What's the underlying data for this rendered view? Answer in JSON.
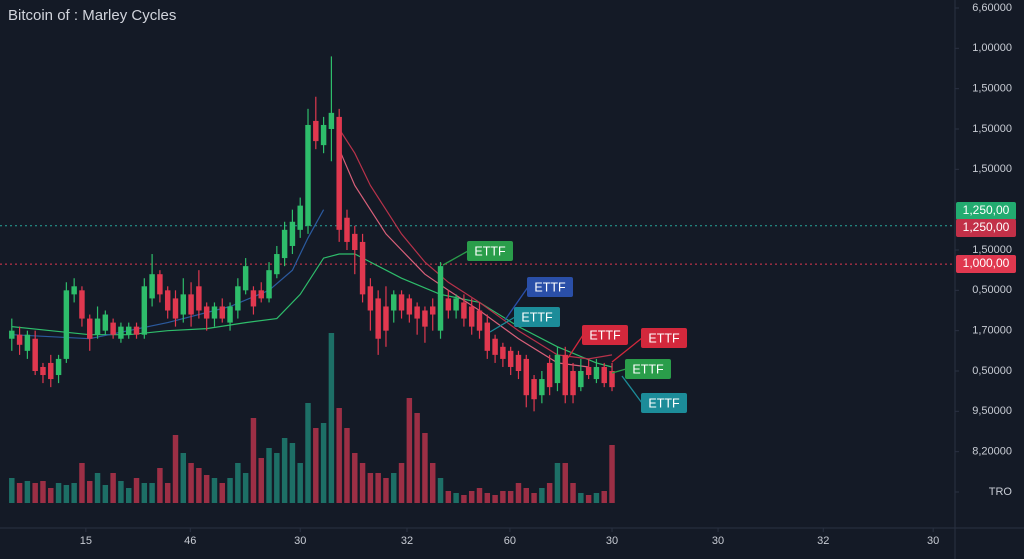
{
  "chart_data": {
    "type": "candlestick",
    "title": "Bitcoin of : Marley Cycles",
    "x": [
      0,
      1,
      2,
      3,
      4,
      5,
      6,
      7,
      8,
      9,
      10,
      11,
      12,
      13,
      14,
      15,
      16,
      17,
      18,
      19,
      20,
      21,
      22,
      23,
      24,
      25,
      26,
      27,
      28,
      29,
      30,
      31,
      32,
      33,
      34,
      35,
      36,
      37,
      38,
      39,
      40,
      41,
      42,
      43,
      44,
      45,
      46,
      47,
      48,
      49,
      50,
      51,
      52,
      53,
      54,
      55,
      56,
      57,
      58,
      59,
      60,
      61,
      62,
      63,
      64,
      65,
      66,
      67,
      68,
      69,
      70,
      71,
      72,
      73,
      74,
      75,
      76,
      77
    ],
    "open": [
      3.8,
      3.9,
      3.5,
      3.8,
      3.1,
      3.2,
      2.9,
      3.3,
      4.9,
      5.0,
      4.3,
      3.9,
      4.0,
      4.2,
      3.8,
      3.9,
      4.1,
      3.9,
      4.8,
      5.4,
      5.0,
      4.8,
      4.4,
      4.9,
      5.1,
      4.6,
      4.3,
      4.6,
      4.2,
      4.5,
      5.0,
      5.0,
      5.0,
      4.8,
      5.4,
      5.8,
      6.1,
      6.5,
      6.6,
      9.2,
      8.6,
      9.0,
      9.3,
      6.8,
      6.4,
      6.2,
      5.1,
      4.8,
      4.6,
      4.5,
      4.9,
      4.8,
      4.6,
      4.5,
      4.6,
      4.0,
      4.8,
      4.5,
      4.7,
      4.6,
      4.5,
      4.2,
      3.8,
      3.6,
      3.5,
      3.4,
      3.3,
      2.8,
      2.4,
      3.2,
      2.7,
      3.4,
      3.0,
      2.6,
      3.1,
      2.8,
      3.1,
      3.0
    ],
    "high": [
      4.3,
      4.1,
      4.0,
      4.0,
      3.2,
      3.4,
      3.4,
      5.2,
      5.3,
      5.1,
      4.4,
      4.6,
      4.5,
      4.3,
      4.2,
      4.2,
      4.2,
      5.3,
      5.9,
      5.5,
      5.1,
      5.0,
      5.3,
      5.2,
      5.5,
      4.7,
      4.7,
      4.8,
      4.7,
      5.3,
      5.8,
      5.1,
      5.2,
      5.7,
      6.1,
      6.7,
      7.0,
      7.3,
      9.5,
      9.8,
      9.3,
      10.8,
      9.5,
      7.0,
      6.6,
      6.4,
      5.3,
      5.0,
      5.1,
      5.0,
      5.0,
      4.9,
      4.7,
      4.6,
      4.8,
      5.7,
      5.0,
      4.9,
      4.9,
      4.8,
      4.7,
      4.4,
      3.9,
      3.7,
      3.6,
      3.5,
      3.4,
      2.9,
      3.0,
      3.4,
      3.6,
      3.6,
      3.2,
      3.3,
      3.3,
      3.3,
      3.2,
      3.2
    ],
    "low": [
      3.5,
      3.4,
      3.3,
      2.9,
      2.7,
      2.6,
      2.7,
      3.2,
      4.7,
      4.1,
      3.5,
      3.8,
      3.9,
      3.8,
      3.7,
      3.8,
      3.8,
      3.8,
      4.6,
      4.7,
      4.3,
      4.1,
      4.2,
      4.1,
      4.3,
      4.0,
      4.1,
      4.2,
      4.0,
      4.3,
      4.9,
      4.4,
      4.7,
      4.7,
      5.3,
      5.6,
      5.9,
      6.3,
      6.4,
      8.5,
      8.4,
      8.2,
      6.2,
      6.0,
      5.4,
      4.7,
      4.0,
      3.4,
      3.6,
      4.2,
      4.3,
      4.2,
      3.9,
      3.7,
      4.0,
      3.8,
      4.3,
      4.3,
      4.1,
      3.9,
      3.8,
      3.3,
      3.2,
      3.1,
      2.9,
      2.8,
      2.1,
      2.0,
      2.2,
      2.4,
      2.5,
      2.2,
      2.2,
      2.5,
      2.8,
      2.7,
      2.6,
      2.5
    ],
    "close": [
      4.0,
      3.65,
      3.9,
      3.0,
      2.9,
      2.8,
      3.3,
      5.0,
      5.1,
      4.3,
      3.8,
      4.3,
      4.4,
      3.9,
      4.1,
      4.1,
      3.9,
      5.1,
      5.4,
      4.9,
      4.5,
      4.3,
      4.9,
      4.4,
      4.5,
      4.3,
      4.6,
      4.3,
      4.6,
      5.1,
      5.6,
      4.6,
      4.8,
      5.5,
      5.9,
      6.5,
      6.7,
      7.1,
      9.1,
      8.7,
      9.1,
      9.4,
      6.5,
      6.2,
      6.0,
      4.9,
      4.5,
      3.8,
      4.0,
      4.9,
      4.5,
      4.4,
      4.3,
      4.1,
      4.4,
      5.6,
      4.5,
      4.8,
      4.3,
      4.1,
      4.0,
      3.5,
      3.4,
      3.3,
      3.1,
      3.0,
      2.4,
      2.3,
      2.8,
      2.6,
      3.4,
      2.4,
      2.4,
      3.0,
      2.9,
      3.1,
      2.7,
      2.6
    ],
    "volume": [
      25,
      20,
      22,
      20,
      22,
      15,
      20,
      18,
      20,
      40,
      22,
      30,
      18,
      30,
      22,
      15,
      25,
      20,
      20,
      35,
      20,
      68,
      50,
      40,
      35,
      28,
      25,
      20,
      25,
      40,
      30,
      85,
      45,
      55,
      50,
      65,
      60,
      40,
      100,
      75,
      80,
      170,
      95,
      75,
      50,
      40,
      30,
      30,
      25,
      30,
      40,
      105,
      90,
      70,
      40,
      25,
      12,
      10,
      8,
      12,
      15,
      10,
      8,
      12,
      12,
      20,
      15,
      10,
      15,
      20,
      40,
      40,
      20,
      10,
      8,
      10,
      12,
      58
    ],
    "xlim": [
      -1,
      121
    ],
    "xticks": [
      {
        "value": 9.5,
        "label": "15"
      },
      {
        "value": 22.9,
        "label": "46"
      },
      {
        "value": 37,
        "label": "30"
      },
      {
        "value": 50.7,
        "label": "32"
      },
      {
        "value": 63.9,
        "label": "60"
      },
      {
        "value": 77,
        "label": "30"
      },
      {
        "value": 90.6,
        "label": "30"
      },
      {
        "value": 104.1,
        "label": "32"
      },
      {
        "value": 118.2,
        "label": "30"
      }
    ],
    "ylim": [
      0,
      12
    ],
    "yticks": [
      {
        "value": 12,
        "label": "6,60000"
      },
      {
        "value": 11,
        "label": "1,00000"
      },
      {
        "value": 10,
        "label": "1,50000"
      },
      {
        "value": 9,
        "label": "1,50000"
      },
      {
        "value": 8,
        "label": "1,50000"
      },
      {
        "value": 6,
        "label": "1,50000"
      },
      {
        "value": 5,
        "label": "0,50000"
      },
      {
        "value": 4,
        "label": "1,70000"
      },
      {
        "value": 3,
        "label": "0,50000"
      },
      {
        "value": 2,
        "label": "9,50000"
      },
      {
        "value": 1,
        "label": "8,20000"
      },
      {
        "value": 0,
        "label": "TRO"
      }
    ],
    "y2lim": [
      0,
      500
    ],
    "up_color": "#2ebd6b",
    "down_color": "#e0384f",
    "volume_up_color": "#1d6f66",
    "volume_down_color": "#9c2f45",
    "lines": [
      {
        "color": "#2ebd6b",
        "x": [
          0,
          5,
          10,
          15,
          20,
          25,
          30,
          34,
          37,
          40,
          42,
          44,
          47,
          50,
          55,
          60,
          65,
          70,
          75,
          77
        ],
        "values": [
          4.1,
          4.0,
          3.9,
          3.9,
          4.0,
          4.05,
          4.2,
          4.3,
          4.9,
          5.8,
          5.9,
          5.9,
          5.6,
          5.3,
          4.9,
          4.7,
          4.1,
          3.6,
          3.2,
          3.1
        ]
      },
      {
        "color": "#b8324a",
        "x": [
          42,
          44,
          46,
          48,
          50,
          53,
          56,
          60,
          65,
          70,
          74,
          77
        ],
        "values": [
          9.0,
          8.4,
          7.6,
          7.0,
          6.4,
          5.7,
          5.2,
          4.7,
          4.0,
          3.4,
          3.3,
          3.4
        ]
      },
      {
        "color": "#d9607a",
        "x": [
          42,
          44,
          46,
          48,
          50,
          53,
          56,
          60,
          65,
          70,
          74
        ],
        "values": [
          8.5,
          7.6,
          7.0,
          6.4,
          6.0,
          5.4,
          5.0,
          4.5,
          3.8,
          3.2,
          3.1
        ]
      },
      {
        "color": "#2b5a9e",
        "x": [
          0,
          10,
          20,
          28,
          33,
          36,
          38,
          40
        ],
        "values": [
          3.9,
          3.8,
          4.2,
          4.6,
          5.0,
          5.5,
          6.3,
          7.0
        ]
      }
    ],
    "hlines": [
      {
        "value": 6.6,
        "color": "#26a69a"
      },
      {
        "value": 5.65,
        "color": "#e0384f"
      }
    ],
    "price_badges": [
      {
        "text": "1,250,00",
        "color": "#22ab70"
      },
      {
        "text": "1,250,00",
        "color": "#c23048"
      },
      {
        "text": "1,000,00",
        "color": "#e0384f"
      }
    ],
    "annotations": [
      {
        "text": "ETTF",
        "color": "#2a9d4a"
      },
      {
        "text": "ETTF",
        "color": "#2a4fa8"
      },
      {
        "text": "ETTF",
        "color": "#1c8c99"
      },
      {
        "text": "ETTF",
        "color": "#d3283c"
      },
      {
        "text": "ETTF",
        "color": "#d3283c"
      },
      {
        "text": "ETTF",
        "color": "#2a9d4a"
      },
      {
        "text": "ETTF",
        "color": "#1c8c99"
      }
    ]
  }
}
